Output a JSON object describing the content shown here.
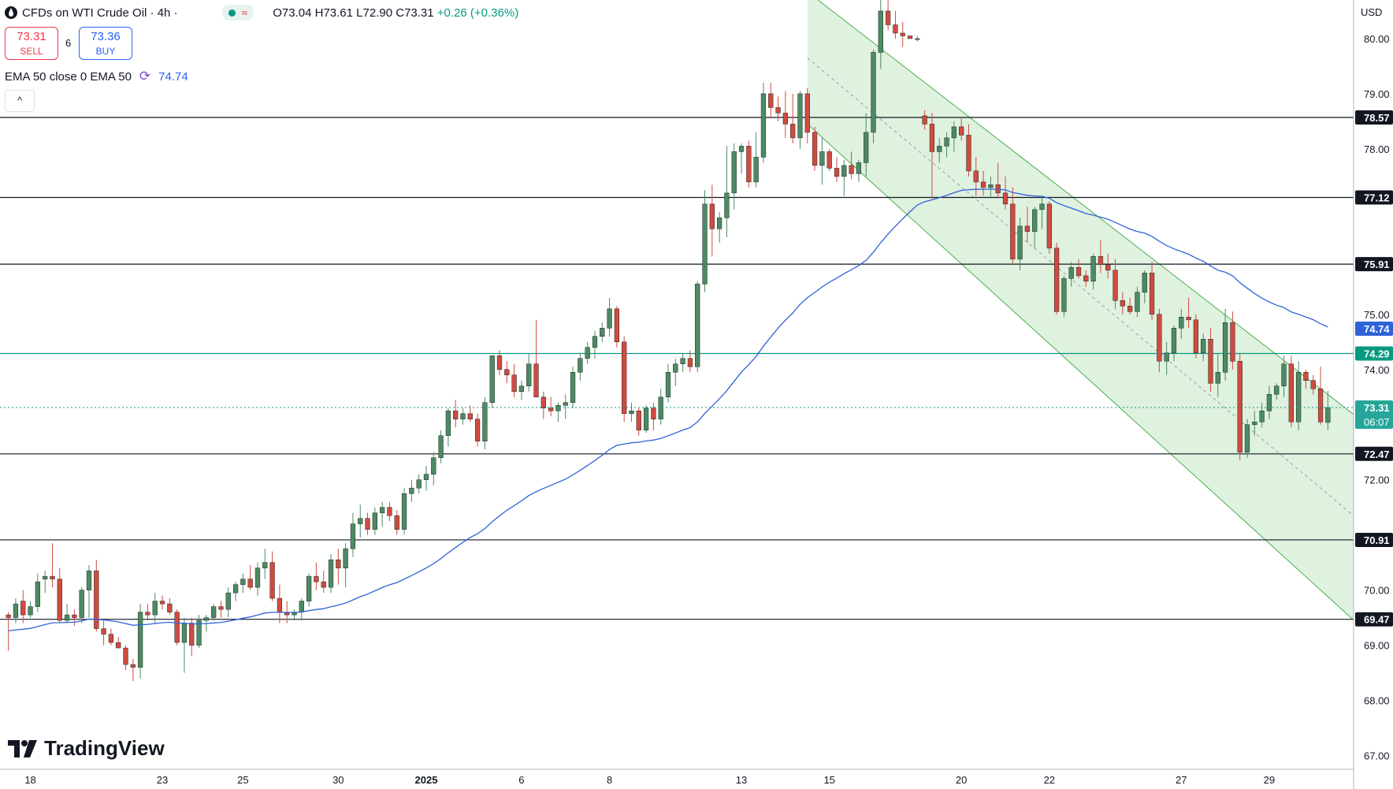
{
  "header": {
    "title": "CFDs on WTI Crude Oil · 4h ·",
    "ohlc": {
      "o": "O73.04",
      "h": "H73.61",
      "l": "L72.90",
      "c": "C73.31",
      "chg": "+0.26 (+0.36%)"
    },
    "sell": {
      "price": "73.31",
      "label": "SELL"
    },
    "buy": {
      "price": "73.36",
      "label": "BUY"
    },
    "spread": "6",
    "indicator": {
      "label": "EMA 50 close 0 EMA 50",
      "value": "74.74"
    },
    "collapse_glyph": "^",
    "currency": "USD"
  },
  "logo_text": "TradingView",
  "colors": {
    "up": "#4d8a63",
    "down": "#d14a40",
    "ema": "#2f63d8",
    "channel": "#4caf50",
    "hline_green": "#089981"
  },
  "chart_data": {
    "type": "candlestick",
    "title": "",
    "ylim": [
      66.75,
      80.7
    ],
    "y_ticks": [
      67,
      68,
      69,
      70,
      72,
      74,
      75,
      78,
      79,
      80
    ],
    "y_tick_labels": [
      "67.00",
      "68.00",
      "69.00",
      "70.00",
      "72.00",
      "74.00",
      "75.00",
      "78.00",
      "79.00",
      "80.00"
    ],
    "x_tick_labels": [
      {
        "i": 3,
        "label": "18"
      },
      {
        "i": 21,
        "label": "23"
      },
      {
        "i": 32,
        "label": "25"
      },
      {
        "i": 45,
        "label": "30"
      },
      {
        "i": 57,
        "label": "2025"
      },
      {
        "i": 70,
        "label": "6"
      },
      {
        "i": 82,
        "label": "8"
      },
      {
        "i": 100,
        "label": "13"
      },
      {
        "i": 112,
        "label": "15"
      },
      {
        "i": 130,
        "label": "20"
      },
      {
        "i": 142,
        "label": "22"
      },
      {
        "i": 160,
        "label": "27"
      },
      {
        "i": 172,
        "label": "29"
      }
    ],
    "hlines": [
      {
        "y": 78.57,
        "label": "78.57",
        "style": "black"
      },
      {
        "y": 77.12,
        "label": "77.12",
        "style": "black"
      },
      {
        "y": 75.91,
        "label": "75.91",
        "style": "black"
      },
      {
        "y": 74.29,
        "label": "74.29",
        "style": "green"
      },
      {
        "y": 72.47,
        "label": "72.47",
        "style": "black"
      },
      {
        "y": 70.91,
        "label": "70.91",
        "style": "black"
      },
      {
        "y": 69.47,
        "label": "69.47",
        "style": "black"
      }
    ],
    "ema_label": "74.74",
    "last_price": {
      "y": 73.31,
      "label": "73.31",
      "countdown": "06:07"
    },
    "channel": {
      "x0": 109,
      "x1": 179,
      "upper": [
        80.85,
        73.65
      ],
      "lower": [
        78.45,
        70.0
      ],
      "mid": [
        79.65,
        71.85
      ]
    },
    "candles": [
      [
        69.55,
        69.6,
        68.9,
        69.5
      ],
      [
        69.5,
        69.85,
        69.4,
        69.75
      ],
      [
        69.8,
        70.0,
        69.4,
        69.55
      ],
      [
        69.55,
        69.8,
        69.5,
        69.7
      ],
      [
        69.7,
        70.3,
        69.6,
        70.15
      ],
      [
        70.2,
        70.35,
        69.95,
        70.25
      ],
      [
        70.25,
        70.85,
        70.05,
        70.2
      ],
      [
        70.2,
        70.4,
        69.4,
        69.45
      ],
      [
        69.45,
        69.75,
        69.4,
        69.55
      ],
      [
        69.55,
        69.65,
        69.35,
        69.5
      ],
      [
        69.5,
        70.05,
        69.4,
        70.0
      ],
      [
        70.0,
        70.45,
        69.5,
        70.35
      ],
      [
        70.35,
        70.55,
        69.25,
        69.3
      ],
      [
        69.3,
        69.45,
        69.0,
        69.2
      ],
      [
        69.2,
        69.3,
        69.0,
        69.05
      ],
      [
        69.05,
        69.15,
        68.95,
        68.95
      ],
      [
        68.95,
        69.0,
        68.55,
        68.65
      ],
      [
        68.65,
        68.75,
        68.35,
        68.6
      ],
      [
        68.6,
        69.75,
        68.4,
        69.6
      ],
      [
        69.6,
        69.75,
        69.45,
        69.55
      ],
      [
        69.55,
        69.95,
        69.4,
        69.8
      ],
      [
        69.8,
        69.9,
        69.65,
        69.75
      ],
      [
        69.75,
        69.85,
        69.55,
        69.6
      ],
      [
        69.6,
        69.65,
        69.0,
        69.05
      ],
      [
        69.05,
        69.5,
        68.5,
        69.4
      ],
      [
        69.4,
        69.5,
        68.8,
        69.0
      ],
      [
        69.0,
        69.55,
        68.95,
        69.45
      ],
      [
        69.45,
        69.55,
        69.25,
        69.5
      ],
      [
        69.5,
        69.75,
        69.45,
        69.7
      ],
      [
        69.7,
        69.8,
        69.5,
        69.65
      ],
      [
        69.65,
        70.05,
        69.5,
        69.95
      ],
      [
        69.95,
        70.15,
        69.8,
        70.1
      ],
      [
        70.1,
        70.3,
        69.95,
        70.2
      ],
      [
        70.2,
        70.45,
        70.0,
        70.05
      ],
      [
        70.05,
        70.5,
        69.9,
        70.4
      ],
      [
        70.4,
        70.75,
        70.2,
        70.5
      ],
      [
        70.5,
        70.7,
        69.8,
        69.85
      ],
      [
        69.85,
        70.1,
        69.4,
        69.6
      ],
      [
        69.6,
        69.8,
        69.4,
        69.55
      ],
      [
        69.55,
        69.65,
        69.45,
        69.6
      ],
      [
        69.6,
        69.85,
        69.45,
        69.8
      ],
      [
        69.8,
        70.3,
        69.7,
        70.25
      ],
      [
        70.25,
        70.5,
        70.0,
        70.15
      ],
      [
        70.15,
        70.35,
        69.95,
        70.05
      ],
      [
        70.05,
        70.65,
        69.95,
        70.55
      ],
      [
        70.55,
        70.75,
        70.1,
        70.4
      ],
      [
        70.4,
        70.85,
        70.05,
        70.75
      ],
      [
        70.75,
        71.4,
        70.6,
        71.2
      ],
      [
        71.2,
        71.55,
        70.95,
        71.3
      ],
      [
        71.3,
        71.4,
        71.0,
        71.1
      ],
      [
        71.1,
        71.5,
        71.0,
        71.4
      ],
      [
        71.4,
        71.6,
        71.15,
        71.5
      ],
      [
        71.5,
        71.6,
        71.25,
        71.35
      ],
      [
        71.35,
        71.45,
        71.0,
        71.1
      ],
      [
        71.1,
        71.85,
        71.0,
        71.75
      ],
      [
        71.75,
        72.0,
        71.6,
        71.85
      ],
      [
        71.85,
        72.1,
        71.75,
        72.0
      ],
      [
        72.0,
        72.25,
        71.8,
        72.1
      ],
      [
        72.1,
        72.5,
        71.9,
        72.4
      ],
      [
        72.4,
        72.9,
        72.3,
        72.8
      ],
      [
        72.8,
        73.3,
        72.6,
        73.25
      ],
      [
        73.25,
        73.45,
        72.95,
        73.1
      ],
      [
        73.1,
        73.3,
        73.0,
        73.2
      ],
      [
        73.2,
        73.35,
        73.05,
        73.1
      ],
      [
        73.1,
        73.2,
        72.6,
        72.7
      ],
      [
        72.7,
        73.5,
        72.55,
        73.4
      ],
      [
        73.4,
        74.25,
        73.3,
        74.25
      ],
      [
        74.25,
        74.35,
        73.9,
        74.0
      ],
      [
        74.0,
        74.15,
        73.75,
        73.9
      ],
      [
        73.9,
        74.1,
        73.5,
        73.6
      ],
      [
        73.6,
        73.8,
        73.45,
        73.7
      ],
      [
        73.7,
        74.3,
        73.6,
        74.1
      ],
      [
        74.1,
        74.9,
        73.6,
        73.5
      ],
      [
        73.5,
        73.6,
        73.1,
        73.3
      ],
      [
        73.3,
        73.5,
        73.15,
        73.25
      ],
      [
        73.25,
        73.4,
        73.05,
        73.35
      ],
      [
        73.35,
        73.55,
        73.1,
        73.4
      ],
      [
        73.4,
        74.05,
        73.3,
        73.95
      ],
      [
        73.95,
        74.3,
        73.8,
        74.2
      ],
      [
        74.2,
        74.5,
        74.1,
        74.4
      ],
      [
        74.4,
        74.7,
        74.2,
        74.6
      ],
      [
        74.6,
        74.85,
        74.5,
        74.75
      ],
      [
        74.75,
        75.3,
        74.6,
        75.1
      ],
      [
        75.1,
        75.15,
        74.4,
        74.5
      ],
      [
        74.5,
        74.6,
        73.05,
        73.2
      ],
      [
        73.2,
        73.4,
        73.05,
        73.25
      ],
      [
        73.25,
        73.3,
        72.8,
        72.9
      ],
      [
        72.9,
        73.35,
        72.85,
        73.3
      ],
      [
        73.3,
        73.4,
        72.9,
        73.1
      ],
      [
        73.1,
        73.65,
        73.0,
        73.5
      ],
      [
        73.5,
        74.1,
        73.4,
        73.95
      ],
      [
        73.95,
        74.2,
        73.7,
        74.1
      ],
      [
        74.1,
        74.3,
        73.95,
        74.2
      ],
      [
        74.2,
        74.35,
        73.95,
        74.05
      ],
      [
        74.05,
        75.6,
        73.95,
        75.55
      ],
      [
        75.55,
        77.25,
        75.4,
        77.0
      ],
      [
        77.0,
        77.35,
        76.05,
        76.55
      ],
      [
        76.55,
        76.85,
        76.3,
        76.75
      ],
      [
        76.75,
        78.05,
        76.4,
        77.2
      ],
      [
        77.2,
        78.1,
        76.9,
        77.95
      ],
      [
        77.95,
        78.1,
        77.55,
        78.05
      ],
      [
        78.05,
        78.15,
        77.3,
        77.4
      ],
      [
        77.4,
        78.3,
        77.3,
        77.85
      ],
      [
        77.85,
        79.2,
        77.75,
        79.0
      ],
      [
        79.0,
        79.2,
        78.55,
        78.75
      ],
      [
        78.75,
        78.95,
        78.5,
        78.65
      ],
      [
        78.65,
        79.05,
        78.2,
        78.45
      ],
      [
        78.45,
        79.0,
        78.1,
        78.2
      ],
      [
        78.2,
        79.05,
        78.0,
        79.0
      ],
      [
        79.0,
        79.1,
        78.1,
        78.3
      ],
      [
        78.3,
        78.4,
        77.6,
        77.7
      ],
      [
        77.7,
        78.2,
        77.35,
        77.95
      ],
      [
        77.95,
        78.0,
        77.6,
        77.65
      ],
      [
        77.65,
        77.85,
        77.4,
        77.5
      ],
      [
        77.5,
        77.8,
        77.15,
        77.7
      ],
      [
        77.7,
        77.95,
        77.45,
        77.55
      ],
      [
        77.55,
        77.8,
        77.4,
        77.75
      ],
      [
        77.75,
        78.65,
        77.5,
        78.3
      ],
      [
        78.3,
        79.8,
        78.1,
        79.75
      ],
      [
        79.75,
        80.75,
        79.45,
        80.5
      ],
      [
        80.5,
        80.7,
        80.15,
        80.25
      ],
      [
        80.25,
        80.5,
        80.0,
        80.1
      ],
      [
        80.1,
        80.3,
        79.85,
        80.05
      ],
      [
        80.05,
        80.0,
        80.05,
        80.0
      ],
      [
        80.0,
        80.05,
        79.95,
        80.0
      ],
      [
        78.6,
        78.7,
        78.35,
        78.45
      ],
      [
        78.45,
        78.65,
        77.1,
        77.95
      ],
      [
        77.95,
        78.2,
        77.75,
        78.05
      ],
      [
        78.05,
        78.3,
        77.85,
        78.2
      ],
      [
        78.2,
        78.5,
        77.95,
        78.4
      ],
      [
        78.4,
        78.55,
        78.15,
        78.25
      ],
      [
        78.25,
        78.45,
        77.5,
        77.6
      ],
      [
        77.6,
        77.85,
        77.15,
        77.4
      ],
      [
        77.4,
        77.6,
        77.15,
        77.3
      ],
      [
        77.3,
        77.5,
        77.1,
        77.35
      ],
      [
        77.35,
        77.75,
        77.1,
        77.2
      ],
      [
        77.2,
        77.5,
        76.9,
        77.0
      ],
      [
        77.0,
        77.3,
        75.9,
        76.0
      ],
      [
        76.0,
        76.75,
        75.8,
        76.6
      ],
      [
        76.6,
        76.95,
        76.3,
        76.5
      ],
      [
        76.5,
        76.95,
        76.2,
        76.9
      ],
      [
        76.9,
        77.15,
        76.55,
        77.0
      ],
      [
        77.0,
        77.05,
        76.1,
        76.2
      ],
      [
        76.2,
        76.3,
        75.0,
        75.05
      ],
      [
        75.05,
        75.7,
        74.95,
        75.65
      ],
      [
        75.65,
        75.95,
        75.5,
        75.85
      ],
      [
        75.85,
        76.0,
        75.65,
        75.7
      ],
      [
        75.7,
        75.8,
        75.5,
        75.6
      ],
      [
        75.6,
        76.1,
        75.45,
        76.05
      ],
      [
        76.05,
        76.35,
        75.75,
        75.9
      ],
      [
        75.9,
        76.1,
        75.65,
        75.8
      ],
      [
        75.8,
        76.0,
        75.1,
        75.25
      ],
      [
        75.25,
        75.4,
        75.0,
        75.15
      ],
      [
        75.15,
        75.3,
        75.0,
        75.05
      ],
      [
        75.05,
        75.5,
        74.95,
        75.4
      ],
      [
        75.4,
        75.8,
        75.2,
        75.75
      ],
      [
        75.75,
        75.95,
        74.9,
        75.0
      ],
      [
        75.0,
        75.1,
        73.95,
        74.15
      ],
      [
        74.15,
        74.5,
        73.9,
        74.3
      ],
      [
        74.3,
        74.8,
        74.15,
        74.75
      ],
      [
        74.75,
        75.1,
        74.55,
        74.95
      ],
      [
        74.95,
        75.3,
        74.75,
        74.9
      ],
      [
        74.9,
        75.0,
        74.2,
        74.3
      ],
      [
        74.3,
        74.65,
        74.15,
        74.55
      ],
      [
        74.55,
        74.75,
        73.6,
        73.75
      ],
      [
        73.75,
        74.3,
        73.5,
        73.95
      ],
      [
        73.95,
        75.1,
        73.8,
        74.85
      ],
      [
        74.85,
        75.05,
        74.0,
        74.15
      ],
      [
        74.15,
        74.3,
        72.35,
        72.5
      ],
      [
        72.5,
        73.1,
        72.4,
        73.0
      ],
      [
        73.0,
        73.25,
        72.8,
        73.05
      ],
      [
        73.05,
        73.4,
        72.95,
        73.25
      ],
      [
        73.25,
        73.7,
        73.1,
        73.55
      ],
      [
        73.55,
        73.75,
        73.45,
        73.7
      ],
      [
        73.7,
        74.25,
        73.5,
        74.1
      ],
      [
        74.1,
        74.25,
        72.95,
        73.05
      ],
      [
        73.05,
        74.15,
        72.9,
        73.95
      ],
      [
        73.95,
        74.0,
        73.65,
        73.8
      ],
      [
        73.8,
        73.9,
        73.55,
        73.65
      ],
      [
        73.65,
        74.05,
        73.0,
        73.05
      ],
      [
        73.04,
        73.61,
        72.9,
        73.31
      ]
    ]
  }
}
